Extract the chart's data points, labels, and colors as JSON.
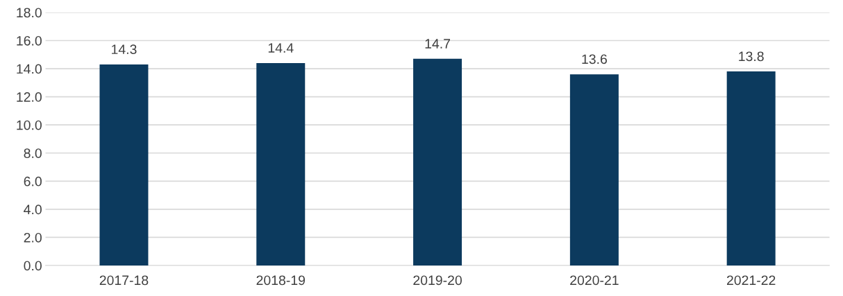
{
  "chart_data": {
    "type": "bar",
    "categories": [
      "2017-18",
      "2018-19",
      "2019-20",
      "2020-21",
      "2021-22"
    ],
    "values": [
      14.3,
      14.4,
      14.7,
      13.6,
      13.8
    ],
    "color": "#0c3a5e",
    "ylim": [
      0,
      18
    ],
    "yticks": [
      {
        "value": 0,
        "label": "0.0"
      },
      {
        "value": 2,
        "label": "2.0"
      },
      {
        "value": 4,
        "label": "4.0"
      },
      {
        "value": 6,
        "label": "6.0"
      },
      {
        "value": 8,
        "label": "8.0"
      },
      {
        "value": 10,
        "label": "10.0"
      },
      {
        "value": 12,
        "label": "12.0"
      },
      {
        "value": 14,
        "label": "14.0"
      },
      {
        "value": 16,
        "label": "16.0"
      },
      {
        "value": 18,
        "label": "18.0"
      }
    ],
    "grid": "y",
    "data_labels": true,
    "legend": false
  }
}
